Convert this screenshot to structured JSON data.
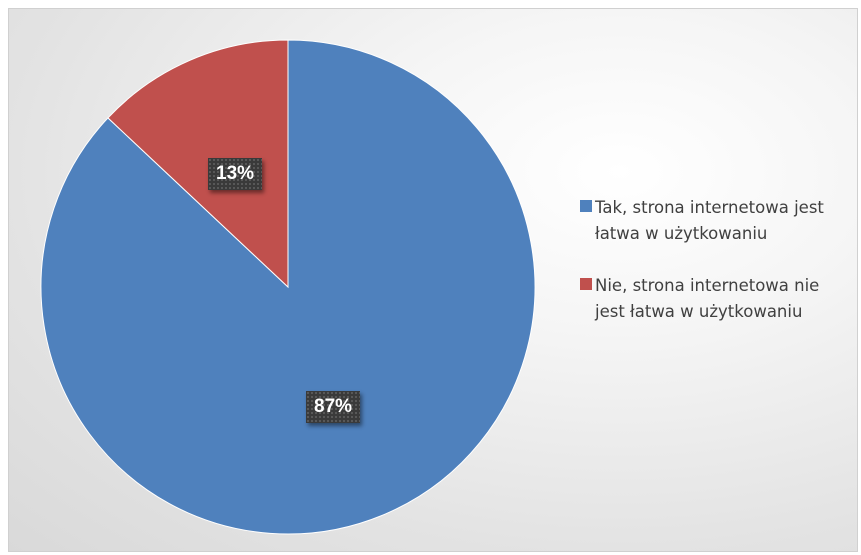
{
  "chart_data": {
    "type": "pie",
    "categories": [
      "Tak, strona internetowa jest łatwa w użytkowaniu",
      "Nie, strona internetowa nie jest łatwa w użytkowaniu"
    ],
    "values": [
      87,
      13
    ],
    "labels": [
      "87%",
      "13%"
    ],
    "colors": [
      "#4F81BD",
      "#C0504D"
    ],
    "legend_position": "right",
    "start_angle_deg": 0,
    "direction": "clockwise"
  }
}
